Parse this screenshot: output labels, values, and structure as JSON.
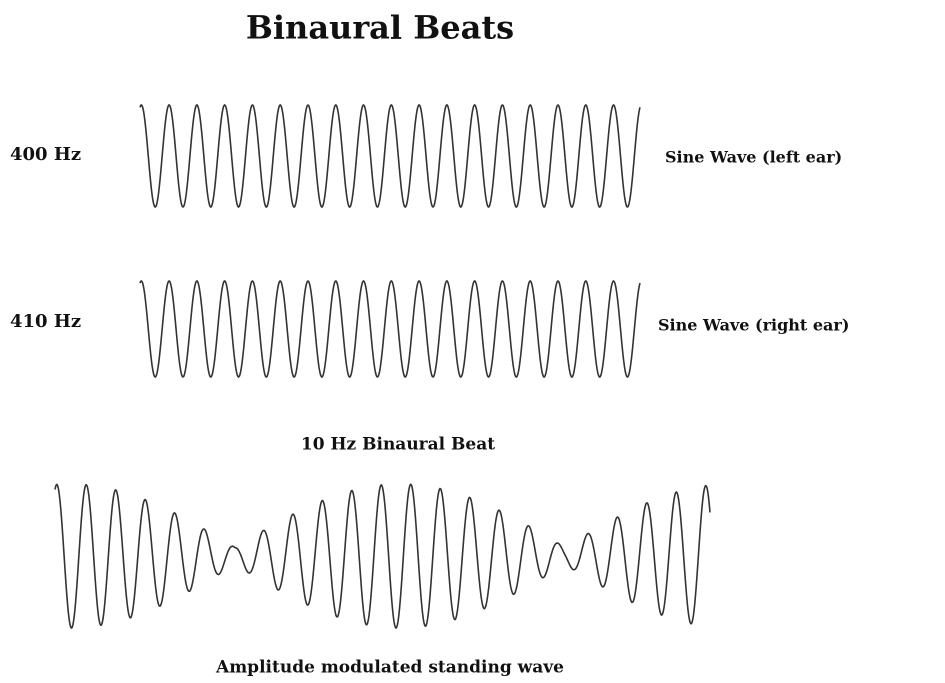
{
  "header": {
    "title": "Binaural Beats"
  },
  "waves": [
    {
      "frequency_label": "400 Hz",
      "description": "Sine Wave (left ear)"
    },
    {
      "frequency_label": "410 Hz",
      "description": "Sine Wave (right ear)"
    }
  ],
  "beat": {
    "label": "10 Hz Binaural Beat",
    "caption": "Amplitude modulated standing wave"
  }
}
